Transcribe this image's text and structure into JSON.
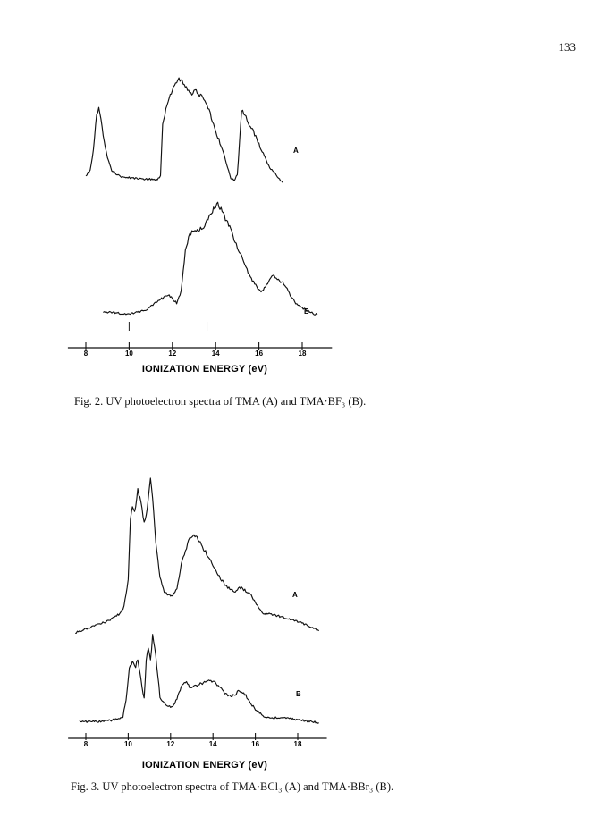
{
  "page_number": "133",
  "figures": [
    {
      "id": "fig2",
      "caption": "Fig. 2. UV photoelectron spectra of TMA (A) and TMA·BF₃ (B).",
      "chart_data": {
        "type": "line",
        "xlabel": "IONIZATION ENERGY (eV)",
        "xlim": [
          7.5,
          19.5
        ],
        "x_ticks": [
          "8",
          "10",
          "12",
          "14",
          "16",
          "18"
        ],
        "markers": [
          10.0,
          13.6
        ],
        "series": [
          {
            "name": "A",
            "x": [
              8.0,
              8.2,
              8.35,
              8.5,
              8.6,
              8.7,
              8.8,
              9.0,
              9.2,
              9.5,
              9.8,
              10.2,
              10.6,
              11.0,
              11.3,
              11.45,
              11.55,
              11.7,
              11.9,
              12.1,
              12.3,
              12.5,
              12.7,
              12.9,
              13.1,
              13.3,
              13.5,
              13.7,
              13.9,
              14.1,
              14.3,
              14.5,
              14.7,
              14.85,
              15.0,
              15.1,
              15.2,
              15.35,
              15.5,
              15.7,
              15.9,
              16.1,
              16.3,
              16.5,
              16.7,
              16.9,
              17.1
            ],
            "y": [
              0.08,
              0.12,
              0.3,
              0.58,
              0.64,
              0.56,
              0.4,
              0.22,
              0.12,
              0.08,
              0.06,
              0.06,
              0.05,
              0.05,
              0.04,
              0.08,
              0.5,
              0.62,
              0.75,
              0.84,
              0.88,
              0.85,
              0.8,
              0.76,
              0.78,
              0.74,
              0.7,
              0.62,
              0.5,
              0.4,
              0.3,
              0.18,
              0.06,
              0.04,
              0.08,
              0.35,
              0.62,
              0.58,
              0.52,
              0.46,
              0.38,
              0.3,
              0.22,
              0.14,
              0.1,
              0.06,
              0.02
            ]
          },
          {
            "name": "B",
            "x": [
              8.8,
              9.2,
              9.6,
              10.0,
              10.4,
              10.8,
              11.2,
              11.5,
              11.8,
              12.0,
              12.2,
              12.4,
              12.6,
              12.75,
              12.9,
              13.1,
              13.3,
              13.5,
              13.7,
              13.9,
              14.1,
              14.3,
              14.5,
              14.7,
              14.9,
              15.1,
              15.3,
              15.5,
              15.7,
              15.9,
              16.1,
              16.3,
              16.5,
              16.7,
              16.9,
              17.1,
              17.3,
              17.5,
              17.7,
              17.9,
              18.1,
              18.3,
              18.5,
              18.7
            ],
            "y": [
              0.02,
              0.02,
              0.01,
              0.01,
              0.02,
              0.04,
              0.1,
              0.14,
              0.17,
              0.14,
              0.1,
              0.2,
              0.55,
              0.68,
              0.72,
              0.74,
              0.75,
              0.78,
              0.86,
              0.92,
              0.98,
              0.9,
              0.82,
              0.74,
              0.64,
              0.55,
              0.46,
              0.37,
              0.3,
              0.24,
              0.2,
              0.24,
              0.32,
              0.34,
              0.3,
              0.28,
              0.22,
              0.15,
              0.1,
              0.07,
              0.05,
              0.03,
              0.01,
              0.0
            ]
          }
        ]
      }
    },
    {
      "id": "fig3",
      "caption": "Fig. 3. UV photoelectron spectra of TMA·BCl₃ (A) and TMA·BBr₃ (B).",
      "chart_data": {
        "type": "line",
        "xlabel": "IONIZATION ENERGY (eV)",
        "xlim": [
          7.5,
          19.5
        ],
        "x_ticks": [
          "8",
          "10",
          "12",
          "14",
          "16",
          "18"
        ],
        "series": [
          {
            "name": "A",
            "x": [
              7.5,
              8.0,
              8.5,
              9.0,
              9.3,
              9.6,
              9.8,
              10.0,
              10.1,
              10.2,
              10.3,
              10.45,
              10.6,
              10.75,
              10.85,
              10.95,
              11.05,
              11.15,
              11.3,
              11.5,
              11.7,
              11.9,
              12.1,
              12.3,
              12.5,
              12.7,
              12.9,
              13.1,
              13.3,
              13.5,
              13.8,
              14.1,
              14.4,
              14.7,
              15.0,
              15.3,
              15.6,
              15.8,
              16.0,
              16.2,
              16.4,
              16.7,
              17.0,
              17.4,
              17.8,
              18.2,
              18.6,
              19.0
            ],
            "y": [
              0.02,
              0.04,
              0.06,
              0.08,
              0.1,
              0.12,
              0.16,
              0.3,
              0.62,
              0.7,
              0.66,
              0.78,
              0.72,
              0.6,
              0.64,
              0.74,
              0.84,
              0.74,
              0.5,
              0.32,
              0.24,
              0.22,
              0.22,
              0.26,
              0.38,
              0.46,
              0.52,
              0.54,
              0.52,
              0.48,
              0.42,
              0.36,
              0.3,
              0.26,
              0.24,
              0.26,
              0.24,
              0.22,
              0.18,
              0.14,
              0.12,
              0.12,
              0.11,
              0.1,
              0.09,
              0.07,
              0.05,
              0.03
            ]
          },
          {
            "name": "B",
            "x": [
              7.7,
              8.2,
              8.7,
              9.2,
              9.5,
              9.75,
              9.9,
              10.05,
              10.2,
              10.35,
              10.45,
              10.6,
              10.75,
              10.85,
              10.95,
              11.05,
              11.15,
              11.3,
              11.5,
              11.7,
              11.9,
              12.1,
              12.3,
              12.5,
              12.7,
              12.9,
              13.1,
              13.4,
              13.7,
              14.0,
              14.3,
              14.6,
              14.9,
              15.2,
              15.5,
              15.8,
              16.1,
              16.4,
              16.7,
              17.0,
              17.4,
              17.8,
              18.2,
              18.6,
              19.0
            ],
            "y": [
              0.02,
              0.02,
              0.02,
              0.03,
              0.04,
              0.06,
              0.2,
              0.44,
              0.5,
              0.46,
              0.52,
              0.36,
              0.2,
              0.5,
              0.62,
              0.5,
              0.7,
              0.55,
              0.22,
              0.16,
              0.14,
              0.14,
              0.2,
              0.3,
              0.34,
              0.3,
              0.3,
              0.32,
              0.34,
              0.34,
              0.3,
              0.24,
              0.22,
              0.26,
              0.24,
              0.16,
              0.1,
              0.06,
              0.05,
              0.05,
              0.05,
              0.04,
              0.03,
              0.02,
              0.01
            ]
          }
        ]
      }
    }
  ]
}
